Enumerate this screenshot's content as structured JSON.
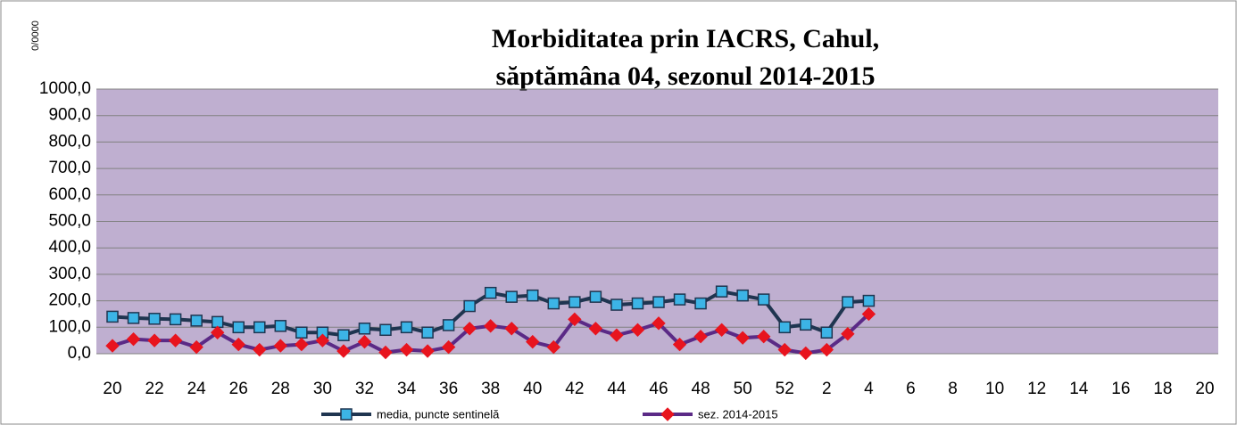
{
  "chart_data": {
    "type": "line",
    "title": "Morbiditatea prin IACRS, Cahul,",
    "subtitle": "săptămâna 04, sezonul  2014-2015",
    "y_axis_label": "0/0000",
    "categories": [
      "20",
      null,
      "22",
      null,
      "24",
      null,
      "26",
      null,
      "28",
      null,
      "30",
      null,
      "32",
      null,
      "34",
      null,
      "36",
      null,
      "38",
      null,
      "40",
      null,
      "42",
      null,
      "44",
      null,
      "46",
      null,
      "48",
      null,
      "50",
      null,
      "52",
      null,
      "2",
      null,
      "4",
      null,
      "6",
      null,
      "8",
      null,
      "10",
      null,
      "12",
      null,
      "14",
      null,
      "16",
      null,
      "18",
      null,
      "20"
    ],
    "series": [
      {
        "name": "media, puncte sentinelă",
        "color": "#1f3550",
        "marker_color": "#3cb4e6",
        "marker": "square",
        "values": [
          140,
          135,
          132,
          130,
          125,
          120,
          100,
          100,
          105,
          80,
          80,
          70,
          95,
          90,
          100,
          80,
          108,
          180,
          230,
          215,
          220,
          190,
          195,
          215,
          185,
          190,
          195,
          205,
          190,
          235,
          220,
          205,
          100,
          110,
          80,
          195,
          200,
          null,
          null,
          null,
          null,
          null,
          null,
          null,
          null,
          null,
          null,
          null,
          null,
          null,
          null,
          null,
          null
        ]
      },
      {
        "name": "sez. 2014-2015",
        "color": "#5b2a86",
        "marker_color": "#e8141e",
        "marker": "diamond",
        "values": [
          30,
          55,
          50,
          50,
          25,
          80,
          35,
          15,
          30,
          35,
          50,
          10,
          45,
          5,
          15,
          10,
          25,
          95,
          105,
          95,
          45,
          25,
          130,
          95,
          70,
          90,
          115,
          35,
          65,
          90,
          60,
          65,
          15,
          2,
          15,
          75,
          150,
          null,
          null,
          null,
          null,
          null,
          null,
          null,
          null,
          null,
          null,
          null,
          null,
          null,
          null,
          null,
          null
        ]
      }
    ],
    "ylim": [
      0,
      1000
    ],
    "yticks": [
      {
        "value": 0,
        "label": "0,0"
      },
      {
        "value": 100,
        "label": "100,0"
      },
      {
        "value": 200,
        "label": "200,0"
      },
      {
        "value": 300,
        "label": "300,0"
      },
      {
        "value": 400,
        "label": "400,0"
      },
      {
        "value": 500,
        "label": "500,0"
      },
      {
        "value": 600,
        "label": "600,0"
      },
      {
        "value": 700,
        "label": "700,0"
      },
      {
        "value": 800,
        "label": "800,0"
      },
      {
        "value": 900,
        "label": "900,0"
      },
      {
        "value": 1000,
        "label": "1000,0"
      }
    ],
    "grid": true,
    "plot_background": "#bfafd0",
    "legend": "bottom"
  }
}
